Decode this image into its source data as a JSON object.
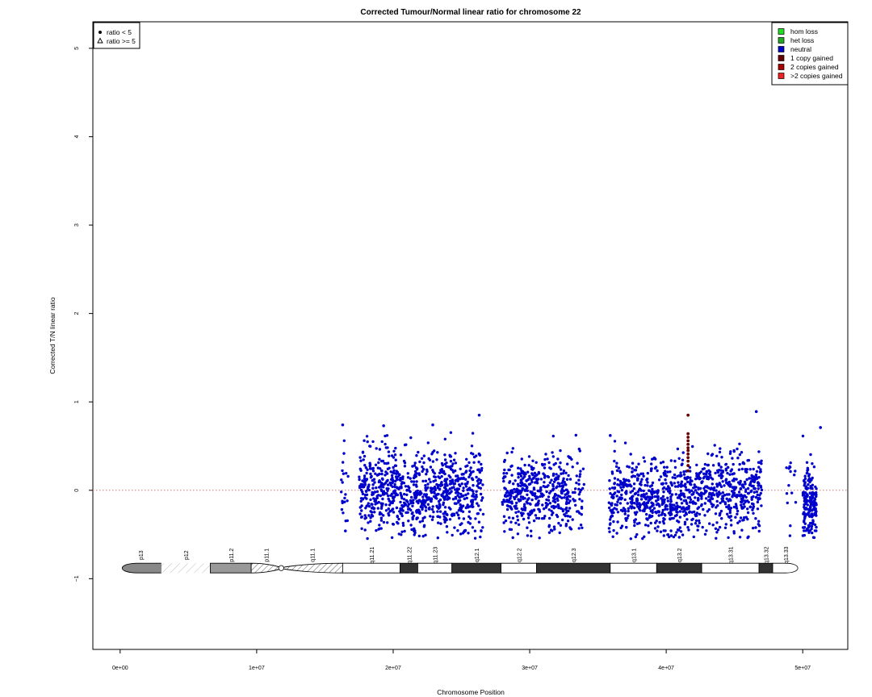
{
  "chart_data": {
    "type": "scatter",
    "title": "Corrected Tumour/Normal linear ratio for chromosome  22",
    "xlabel": "Chromosome Position",
    "ylabel": "Corrected T/N linear ratio",
    "xlim": [
      -2000000,
      53300000
    ],
    "ylim": [
      -1.8,
      5.3
    ],
    "x_ticks": [
      {
        "value": 0,
        "label": "0e+00"
      },
      {
        "value": 10000000,
        "label": "1e+07"
      },
      {
        "value": 20000000,
        "label": "2e+07"
      },
      {
        "value": 30000000,
        "label": "3e+07"
      },
      {
        "value": 40000000,
        "label": "4e+07"
      },
      {
        "value": 50000000,
        "label": "5e+07"
      }
    ],
    "y_ticks": [
      {
        "value": -1,
        "label": "−1"
      },
      {
        "value": 0,
        "label": "0"
      },
      {
        "value": 1,
        "label": "1"
      },
      {
        "value": 2,
        "label": "2"
      },
      {
        "value": 3,
        "label": "3"
      },
      {
        "value": 4,
        "label": "4"
      },
      {
        "value": 5,
        "label": "5"
      }
    ],
    "reference_line": {
      "y": 0,
      "color": "#d47777",
      "style": "dotted"
    },
    "grid": false,
    "shape_legend": {
      "placement": "top-left",
      "entries": [
        {
          "symbol": "dot",
          "label": "ratio < 5"
        },
        {
          "symbol": "triangle",
          "label": "ratio >= 5"
        }
      ]
    },
    "color_legend": {
      "placement": "top-right",
      "entries": [
        {
          "label": "hom loss",
          "color": "#22dd22"
        },
        {
          "label": "het loss",
          "color": "#22aa22"
        },
        {
          "label": "neutral",
          "color": "#0000cc"
        },
        {
          "label": "1 copy gained",
          "color": "#660000"
        },
        {
          "label": "2 copies gained",
          "color": "#aa0000"
        },
        {
          "label": ">2 copies gained",
          "color": "#ee2222"
        }
      ]
    },
    "point_clusters": [
      {
        "series": "neutral",
        "x_range": [
          16200000,
          16700000
        ],
        "center": 0.0,
        "spread": 0.3,
        "count": 20
      },
      {
        "series": "neutral",
        "x_range": [
          17500000,
          21000000
        ],
        "center": 0.0,
        "spread": 0.25,
        "count": 340
      },
      {
        "series": "neutral",
        "x_range": [
          21000000,
          22500000
        ],
        "center": -0.05,
        "spread": 0.22,
        "count": 150
      },
      {
        "series": "neutral",
        "x_range": [
          22500000,
          26000000
        ],
        "center": 0.0,
        "spread": 0.22,
        "count": 330
      },
      {
        "series": "neutral",
        "x_range": [
          26000000,
          26600000
        ],
        "center": 0.0,
        "spread": 0.25,
        "count": 45
      },
      {
        "series": "neutral",
        "x_range": [
          28000000,
          33000000
        ],
        "center": -0.05,
        "spread": 0.22,
        "count": 430
      },
      {
        "series": "neutral",
        "x_range": [
          33000000,
          34000000
        ],
        "center": 0.0,
        "spread": 0.25,
        "count": 40
      },
      {
        "series": "neutral",
        "x_range": [
          35800000,
          42500000
        ],
        "center": -0.08,
        "spread": 0.22,
        "count": 600
      },
      {
        "series": "neutral",
        "x_range": [
          42500000,
          47000000
        ],
        "center": 0.0,
        "spread": 0.22,
        "count": 380
      },
      {
        "series": "neutral",
        "x_range": [
          48800000,
          49500000
        ],
        "center": 0.05,
        "spread": 0.2,
        "count": 15
      },
      {
        "series": "neutral",
        "x_range": [
          50000000,
          51000000
        ],
        "center": -0.15,
        "spread": 0.2,
        "count": 190
      }
    ],
    "notable_points": [
      {
        "series": "neutral",
        "x": 16300000,
        "y": 0.74
      },
      {
        "series": "neutral",
        "x": 26300000,
        "y": 0.85
      },
      {
        "series": "neutral",
        "x": 46600000,
        "y": 0.89
      },
      {
        "series": "neutral",
        "x": 51300000,
        "y": 0.71
      },
      {
        "series": "neutral",
        "x": 19300000,
        "y": 0.73
      },
      {
        "series": "neutral",
        "x": 22900000,
        "y": 0.74
      },
      {
        "series": "neutral",
        "x": 35900000,
        "y": 0.62
      },
      {
        "series": "neutral",
        "x": 16500000,
        "y": -0.46
      }
    ],
    "gained_points": {
      "series": "1 copy gained",
      "x": 41600000,
      "y_values": [
        0.85,
        0.64,
        0.6,
        0.56,
        0.52,
        0.48,
        0.45,
        0.41,
        0.37,
        0.33,
        0.28,
        0.22
      ]
    },
    "ideogram": {
      "y": -0.88,
      "bands": [
        {
          "name": "p13",
          "start": 0,
          "end": 3000000,
          "fill": "#888888",
          "shape": "cap-left"
        },
        {
          "name": "p12",
          "start": 3000000,
          "end": 6600000,
          "fill": "hatch-light"
        },
        {
          "name": "p11.2",
          "start": 6600000,
          "end": 9600000,
          "fill": "#999999"
        },
        {
          "name": "p11.1",
          "start": 9600000,
          "end": 11800000,
          "fill": "hatch",
          "shape": "taper-right"
        },
        {
          "name": "q11.1",
          "start": 11800000,
          "end": 16300000,
          "fill": "hatch",
          "shape": "taper-left"
        },
        {
          "name": "q11.21",
          "start": 16300000,
          "end": 20500000,
          "fill": "#ffffff"
        },
        {
          "name": "q11.22",
          "start": 20500000,
          "end": 21800000,
          "fill": "#333333"
        },
        {
          "name": "q11.23",
          "start": 21800000,
          "end": 24300000,
          "fill": "#ffffff"
        },
        {
          "name": "q12.1",
          "start": 24300000,
          "end": 27900000,
          "fill": "#333333"
        },
        {
          "name": "q12.2",
          "start": 27900000,
          "end": 30500000,
          "fill": "#ffffff"
        },
        {
          "name": "q12.3",
          "start": 30500000,
          "end": 35900000,
          "fill": "#333333"
        },
        {
          "name": "q13.1",
          "start": 35900000,
          "end": 39300000,
          "fill": "#ffffff"
        },
        {
          "name": "q13.2",
          "start": 39300000,
          "end": 42600000,
          "fill": "#333333"
        },
        {
          "name": "q13.31",
          "start": 42600000,
          "end": 46800000,
          "fill": "#ffffff"
        },
        {
          "name": "q13.32",
          "start": 46800000,
          "end": 47800000,
          "fill": "#333333"
        },
        {
          "name": "q13.33",
          "start": 47800000,
          "end": 49700000,
          "fill": "#ffffff",
          "shape": "cap-right"
        }
      ]
    }
  }
}
